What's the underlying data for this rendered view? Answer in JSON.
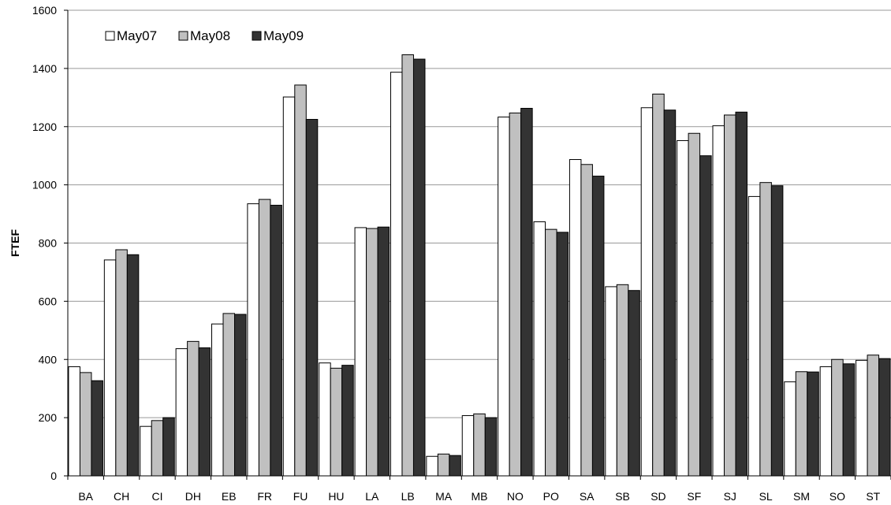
{
  "chart_data": {
    "type": "bar",
    "ylabel": "FTEF",
    "xlabel": "",
    "title": "",
    "ylim": [
      0,
      1600
    ],
    "yticks": [
      0,
      200,
      400,
      600,
      800,
      1000,
      1200,
      1400,
      1600
    ],
    "grid": "horizontal",
    "legend_position": "top-left",
    "categories": [
      "BA",
      "CH",
      "CI",
      "DH",
      "EB",
      "FR",
      "FU",
      "HU",
      "LA",
      "LB",
      "MA",
      "MB",
      "NO",
      "PO",
      "SA",
      "SB",
      "SD",
      "SF",
      "SJ",
      "SL",
      "SM",
      "SO",
      "ST"
    ],
    "series": [
      {
        "name": "May07",
        "color": "#ffffff",
        "values": [
          375,
          742,
          170,
          437,
          522,
          935,
          1302,
          388,
          853,
          1387,
          67,
          207,
          1233,
          873,
          1087,
          650,
          1265,
          1152,
          1203,
          960,
          323,
          375,
          397
        ]
      },
      {
        "name": "May08",
        "color": "#c0c0c0",
        "values": [
          355,
          777,
          190,
          462,
          558,
          950,
          1343,
          370,
          850,
          1447,
          75,
          213,
          1247,
          847,
          1070,
          657,
          1312,
          1177,
          1240,
          1008,
          358,
          400,
          415
        ]
      },
      {
        "name": "May09",
        "color": "#333333",
        "values": [
          327,
          760,
          200,
          440,
          555,
          930,
          1225,
          380,
          855,
          1432,
          70,
          200,
          1263,
          837,
          1030,
          637,
          1257,
          1100,
          1250,
          997,
          357,
          385,
          403
        ]
      }
    ]
  }
}
